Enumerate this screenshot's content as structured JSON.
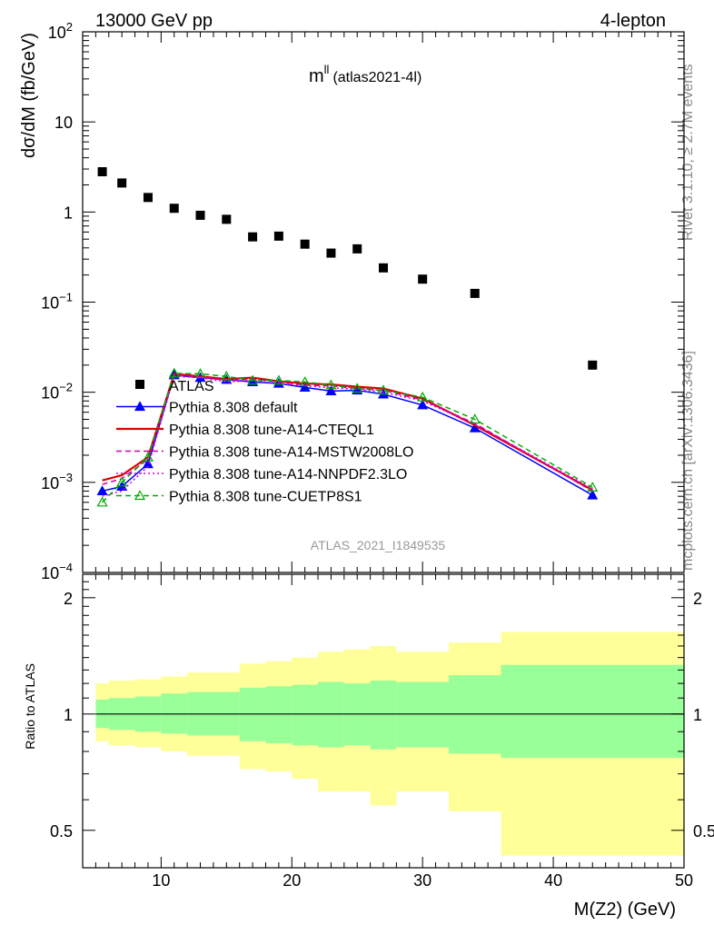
{
  "header": {
    "left": "13000 GeV pp",
    "right": "4-lepton"
  },
  "title": {
    "main": "m",
    "sup": "ll",
    "sub": "(atlas2021-4l)"
  },
  "side_labels": {
    "rivet": "Rivet 3.1.10, ≥ 2.7M events",
    "mcplots": "mcplots.cern.ch [arXiv:1306.3436]"
  },
  "watermark": "ATLAS_2021_I1849535",
  "chart_data": [
    {
      "type": "scatter",
      "ylabel": "dσ/dM (fb/GeV)",
      "xlim": [
        4,
        50
      ],
      "ylim": [
        0.0001,
        100
      ],
      "yscale": "log",
      "yticks": [
        {
          "value": 0.0001,
          "base": "10",
          "exp": "−4"
        },
        {
          "value": 0.001,
          "base": "10",
          "exp": "−3"
        },
        {
          "value": 0.01,
          "base": "10",
          "exp": "−2"
        },
        {
          "value": 0.1,
          "base": "10",
          "exp": "−1"
        },
        {
          "value": 1,
          "base": "1",
          "exp": ""
        },
        {
          "value": 10,
          "base": "10",
          "exp": ""
        },
        {
          "value": 100,
          "base": "10",
          "exp": "2"
        }
      ],
      "data": {
        "name": "ATLAS",
        "color": "#000000",
        "x": [
          5.5,
          7,
          9,
          11,
          13,
          15,
          17,
          19,
          21,
          23,
          25,
          27,
          30,
          34,
          43
        ],
        "y": [
          2.8,
          2.1,
          1.45,
          1.1,
          0.92,
          0.83,
          0.53,
          0.54,
          0.44,
          0.35,
          0.39,
          0.24,
          0.18,
          0.125,
          0.02
        ]
      },
      "series": [
        {
          "name": "Pythia 8.308 default",
          "color": "#0000ff",
          "style": "solid",
          "marker": "filled-triangle",
          "x": [
            5.5,
            7,
            9,
            11,
            13,
            15,
            17,
            19,
            21,
            23,
            25,
            27,
            30,
            34,
            43
          ],
          "y": [
            0.0008,
            0.0009,
            0.0016,
            0.0155,
            0.0145,
            0.0138,
            0.013,
            0.0125,
            0.0113,
            0.0103,
            0.0105,
            0.0095,
            0.0072,
            0.004,
            0.00072
          ]
        },
        {
          "name": "Pythia 8.308 tune-A14-CTEQL1",
          "color": "#e00000",
          "style": "solid",
          "marker": "none",
          "x": [
            5.5,
            7,
            9,
            11,
            13,
            15,
            17,
            19,
            21,
            23,
            25,
            27,
            30,
            34,
            43
          ],
          "y": [
            0.00105,
            0.0012,
            0.0019,
            0.016,
            0.015,
            0.014,
            0.0145,
            0.0132,
            0.0125,
            0.0122,
            0.0115,
            0.011,
            0.0085,
            0.0043,
            0.00082
          ]
        },
        {
          "name": "Pythia 8.308 tune-A14-MSTW2008LO",
          "color": "#cc00aa",
          "style": "dashed",
          "marker": "none",
          "x": [
            5.5,
            7,
            9,
            11,
            13,
            15,
            17,
            19,
            21,
            23,
            25,
            27,
            30,
            34,
            43
          ],
          "y": [
            0.00095,
            0.0011,
            0.0018,
            0.0155,
            0.0148,
            0.0135,
            0.014,
            0.013,
            0.012,
            0.0118,
            0.011,
            0.0105,
            0.0082,
            0.0045,
            0.0008
          ]
        },
        {
          "name": "Pythia 8.308 tune-A14-NNPDF2.3LO",
          "color": "#dd00dd",
          "style": "dotted",
          "marker": "none",
          "x": [
            5.5,
            7,
            9,
            11,
            13,
            15,
            17,
            19,
            21,
            23,
            25,
            27,
            30,
            34,
            43
          ],
          "y": [
            0.0007,
            0.0008,
            0.0015,
            0.015,
            0.0145,
            0.013,
            0.0135,
            0.0125,
            0.0118,
            0.0112,
            0.0108,
            0.01,
            0.008,
            0.0044,
            0.00085
          ]
        },
        {
          "name": "Pythia 8.308 tune-CUETP8S1",
          "color": "#00aa00",
          "style": "dashed",
          "marker": "open-triangle",
          "x": [
            5.5,
            7,
            9,
            11,
            13,
            15,
            17,
            19,
            21,
            23,
            25,
            27,
            30,
            34,
            43
          ],
          "y": [
            0.0006,
            0.001,
            0.0019,
            0.0162,
            0.016,
            0.015,
            0.0135,
            0.0135,
            0.013,
            0.012,
            0.011,
            0.0105,
            0.0088,
            0.005,
            0.00088
          ]
        }
      ]
    },
    {
      "type": "area",
      "ylabel": "Ratio to ATLAS",
      "xlabel": "M(Z2) (GeV)",
      "xlim": [
        4,
        50
      ],
      "ylim": [
        0.4,
        2.3
      ],
      "yscale": "log",
      "yticks": [
        0.5,
        1,
        2
      ],
      "xticks": [
        10,
        20,
        30,
        40,
        50
      ],
      "reference": 1.0,
      "bins": [
        {
          "lo": 5,
          "hi": 6,
          "inner": [
            0.92,
            1.09
          ],
          "outer": [
            0.85,
            1.2
          ]
        },
        {
          "lo": 6,
          "hi": 8,
          "inner": [
            0.91,
            1.1
          ],
          "outer": [
            0.83,
            1.22
          ]
        },
        {
          "lo": 8,
          "hi": 10,
          "inner": [
            0.9,
            1.11
          ],
          "outer": [
            0.82,
            1.23
          ]
        },
        {
          "lo": 10,
          "hi": 12,
          "inner": [
            0.89,
            1.13
          ],
          "outer": [
            0.8,
            1.25
          ]
        },
        {
          "lo": 12,
          "hi": 16,
          "inner": [
            0.88,
            1.14
          ],
          "outer": [
            0.78,
            1.28
          ]
        },
        {
          "lo": 16,
          "hi": 18,
          "inner": [
            0.85,
            1.17
          ],
          "outer": [
            0.72,
            1.35
          ]
        },
        {
          "lo": 18,
          "hi": 20,
          "inner": [
            0.84,
            1.18
          ],
          "outer": [
            0.71,
            1.37
          ]
        },
        {
          "lo": 20,
          "hi": 22,
          "inner": [
            0.83,
            1.19
          ],
          "outer": [
            0.68,
            1.4
          ]
        },
        {
          "lo": 22,
          "hi": 24,
          "inner": [
            0.82,
            1.21
          ],
          "outer": [
            0.63,
            1.45
          ]
        },
        {
          "lo": 24,
          "hi": 26,
          "inner": [
            0.83,
            1.2
          ],
          "outer": [
            0.63,
            1.47
          ]
        },
        {
          "lo": 26,
          "hi": 28,
          "inner": [
            0.81,
            1.22
          ],
          "outer": [
            0.58,
            1.5
          ]
        },
        {
          "lo": 28,
          "hi": 32,
          "inner": [
            0.82,
            1.21
          ],
          "outer": [
            0.63,
            1.45
          ]
        },
        {
          "lo": 32,
          "hi": 36,
          "inner": [
            0.79,
            1.26
          ],
          "outer": [
            0.56,
            1.53
          ]
        },
        {
          "lo": 36,
          "hi": 50,
          "inner": [
            0.77,
            1.34
          ],
          "outer": [
            0.43,
            1.63
          ]
        }
      ]
    }
  ],
  "colors": {
    "inner_band": "#99ff99",
    "outer_band": "#ffff99"
  }
}
